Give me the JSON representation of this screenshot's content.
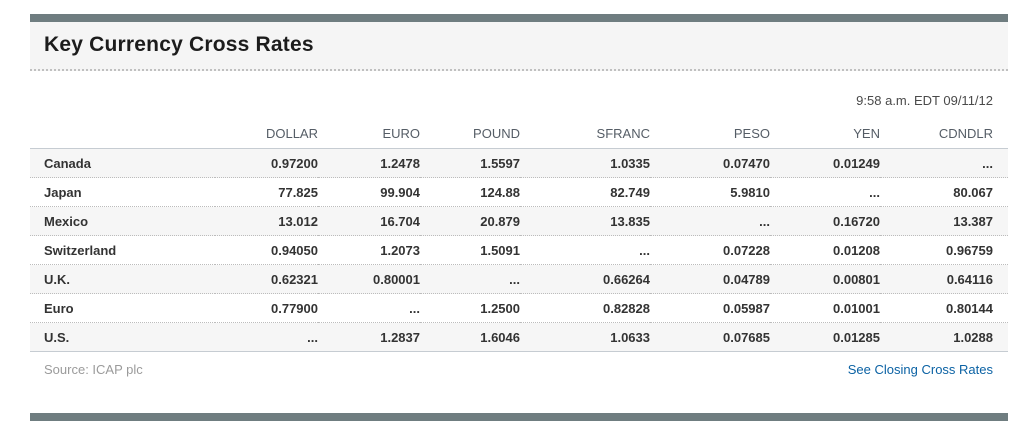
{
  "header": {
    "title": "Key Currency Cross Rates",
    "timestamp": "9:58 a.m. EDT 09/11/12"
  },
  "table": {
    "columns": [
      "DOLLAR",
      "EURO",
      "POUND",
      "SFRANC",
      "PESO",
      "YEN",
      "CDNDLR"
    ],
    "rows": [
      {
        "label": "Canada",
        "values": [
          "0.97200",
          "1.2478",
          "1.5597",
          "1.0335",
          "0.07470",
          "0.01249",
          "..."
        ]
      },
      {
        "label": "Japan",
        "values": [
          "77.825",
          "99.904",
          "124.88",
          "82.749",
          "5.9810",
          "...",
          "80.067"
        ]
      },
      {
        "label": "Mexico",
        "values": [
          "13.012",
          "16.704",
          "20.879",
          "13.835",
          "...",
          "0.16720",
          "13.387"
        ]
      },
      {
        "label": "Switzerland",
        "values": [
          "0.94050",
          "1.2073",
          "1.5091",
          "...",
          "0.07228",
          "0.01208",
          "0.96759"
        ]
      },
      {
        "label": "U.K.",
        "values": [
          "0.62321",
          "0.80001",
          "...",
          "0.66264",
          "0.04789",
          "0.00801",
          "0.64116"
        ]
      },
      {
        "label": "Euro",
        "values": [
          "0.77900",
          "...",
          "1.2500",
          "0.82828",
          "0.05987",
          "0.01001",
          "0.80144"
        ]
      },
      {
        "label": "U.S.",
        "values": [
          "...",
          "1.2837",
          "1.6046",
          "1.0633",
          "0.07685",
          "0.01285",
          "1.0288"
        ]
      }
    ]
  },
  "footer": {
    "source": "Source: ICAP plc",
    "link_label": "See Closing Cross Rates"
  },
  "colors": {
    "divider_bar": "#6f7d80",
    "header_band_bg": "#f5f5f5",
    "row_stripe": "#f6f6f6",
    "column_header_text": "#555d66",
    "cell_text": "#333333",
    "source_gray": "#9b9b9b",
    "link_blue": "#0b62a4"
  }
}
